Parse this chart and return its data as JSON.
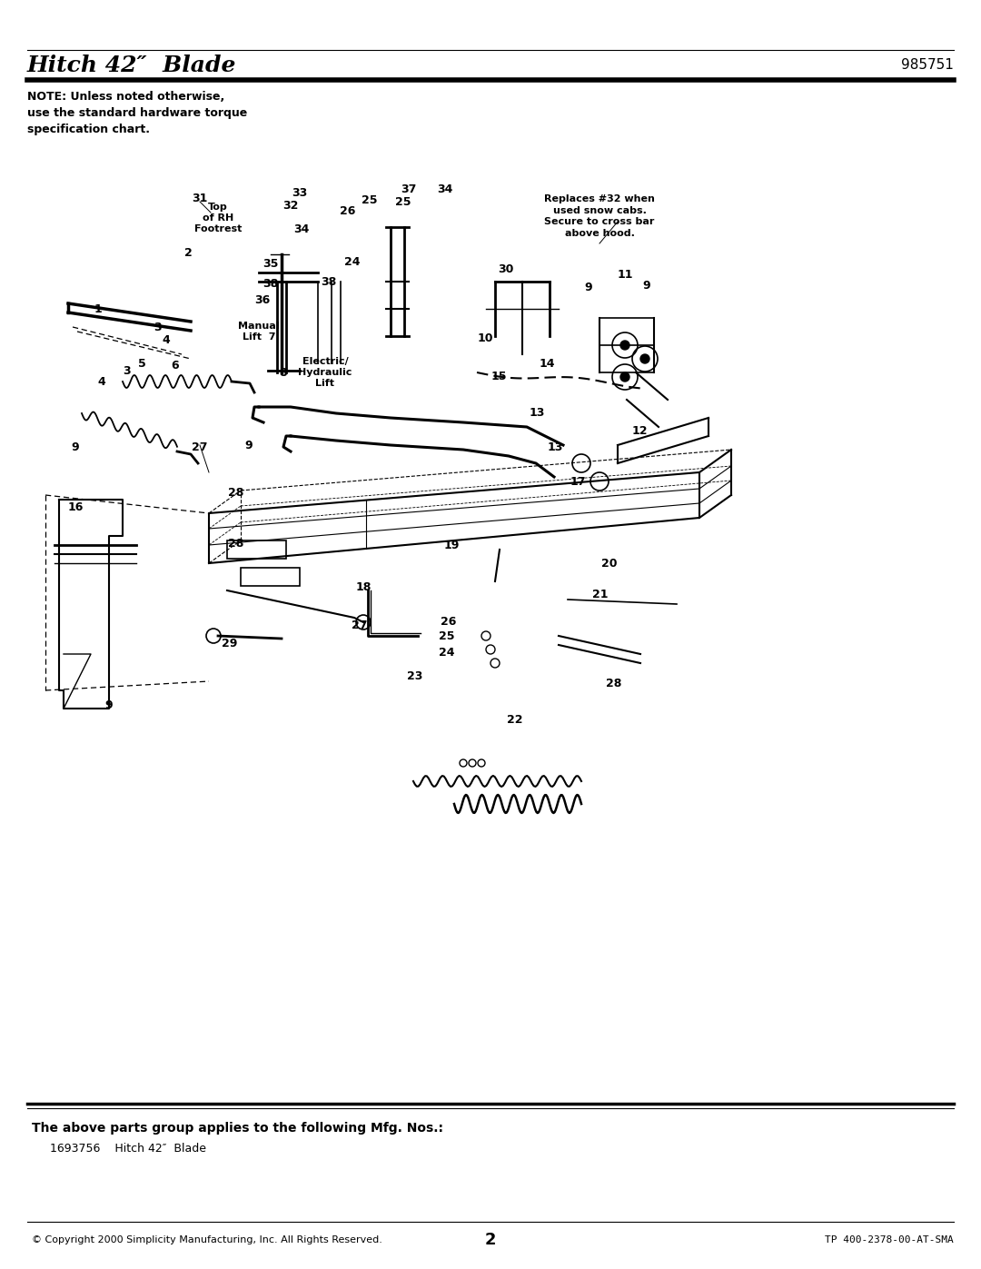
{
  "title": "Hitch 42″  Blade",
  "part_number": "985751",
  "note_text": "NOTE: Unless noted otherwise,\nuse the standard hardware torque\nspecification chart.",
  "footer_left": "© Copyright 2000 Simplicity Manufacturing, Inc. All Rights Reserved.",
  "footer_center": "2",
  "footer_right": "TP 400-2378-00-AT-SMA",
  "parts_group_title": "The above parts group applies to the following Mfg. Nos.:",
  "parts_group_entry": "1693756    Hitch 42″  Blade",
  "bg_color": "#ffffff"
}
